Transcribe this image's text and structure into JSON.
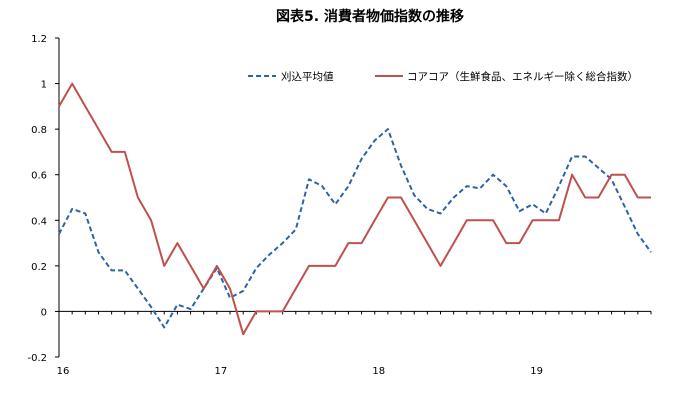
{
  "chart_data": {
    "type": "line",
    "title": "図表5. 消費者物価指数の推移",
    "xlabel": "",
    "ylabel": "",
    "ylim": [
      -0.2,
      1.2
    ],
    "yticks": [
      "1.2",
      "1",
      "0.8",
      "0.6",
      "0.4",
      "0.2",
      "0",
      "-0.2"
    ],
    "xticks": [
      {
        "label": "16",
        "index": 0
      },
      {
        "label": "17",
        "index": 12
      },
      {
        "label": "18",
        "index": 24
      },
      {
        "label": "19",
        "index": 36
      }
    ],
    "grid": false,
    "legend_position": "top-right",
    "series": [
      {
        "name": "刈込平均値",
        "style": "dashed",
        "color": "#2E63A8",
        "values": [
          0.34,
          0.45,
          0.43,
          0.26,
          0.18,
          0.18,
          0.1,
          0.02,
          -0.07,
          0.03,
          0.01,
          0.1,
          0.19,
          0.06,
          0.09,
          0.19,
          0.25,
          0.3,
          0.36,
          0.58,
          0.55,
          0.47,
          0.55,
          0.67,
          0.75,
          0.8,
          0.64,
          0.51,
          0.45,
          0.43,
          0.5,
          0.55,
          0.54,
          0.6,
          0.55,
          0.44,
          0.47,
          0.43,
          0.55,
          0.68,
          0.68,
          0.63,
          0.58,
          0.46,
          0.34,
          0.26
        ]
      },
      {
        "name": "コアコア（生鮮食品、エネルギー除く総合指数）",
        "style": "solid",
        "color": "#C0504D",
        "values": [
          0.9,
          1.0,
          0.9,
          0.8,
          0.7,
          0.7,
          0.5,
          0.4,
          0.2,
          0.3,
          0.2,
          0.1,
          0.2,
          0.1,
          -0.1,
          0.0,
          0.0,
          0.0,
          0.1,
          0.2,
          0.2,
          0.2,
          0.3,
          0.3,
          0.4,
          0.5,
          0.5,
          0.4,
          0.3,
          0.2,
          0.3,
          0.4,
          0.4,
          0.4,
          0.3,
          0.3,
          0.4,
          0.4,
          0.4,
          0.6,
          0.5,
          0.5,
          0.6,
          0.6,
          0.5,
          0.5
        ]
      }
    ]
  }
}
